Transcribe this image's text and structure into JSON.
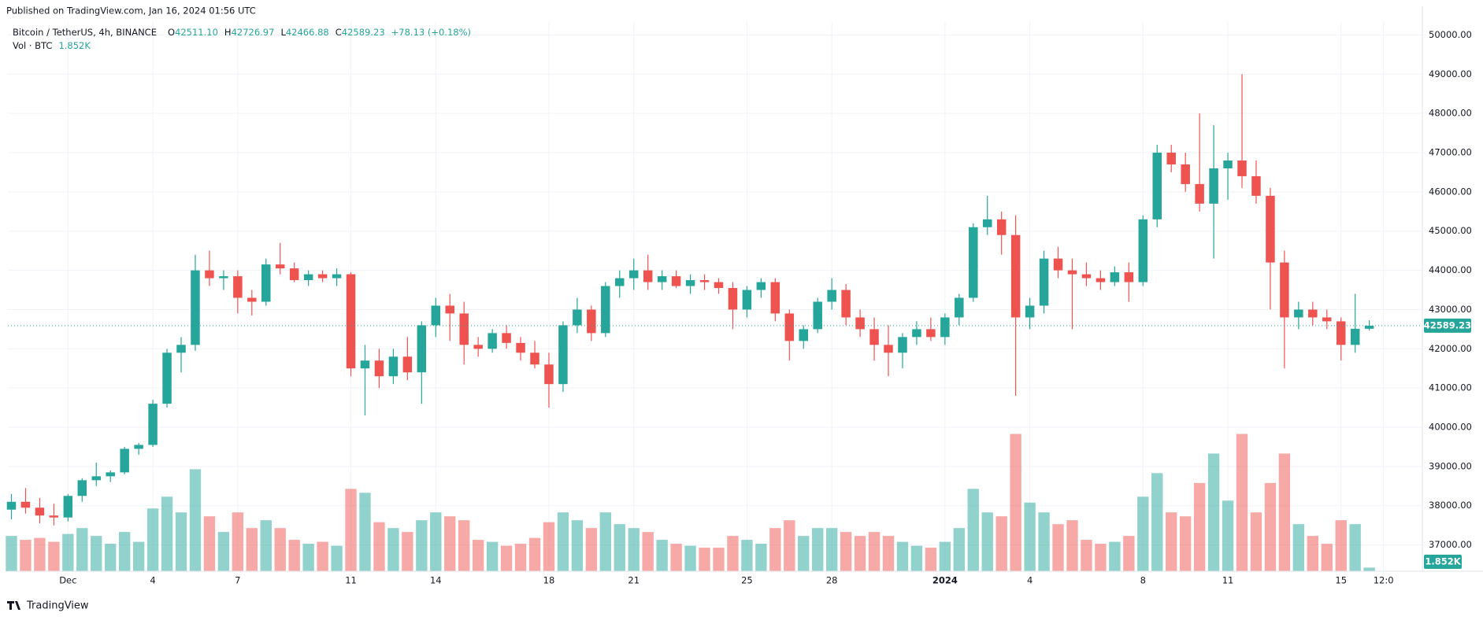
{
  "published": "Published on TradingView.com, Jan 16, 2024 01:56 UTC",
  "brand": "TradingView",
  "header": {
    "symbol": "Bitcoin / TetherUS, 4h, BINANCE",
    "ohlc_keys": [
      "O",
      "H",
      "L",
      "C"
    ],
    "ohlc_values": [
      "42511.10",
      "42726.97",
      "42466.88",
      "42589.23"
    ],
    "change": "+78.13 (+0.18%)",
    "vol_title": "Vol · BTC",
    "vol_value": "1.852K"
  },
  "chart_data": {
    "type": "candlestick",
    "up_color": "#26a69a",
    "down_color": "#ef5350",
    "grid": true,
    "xlim": [
      -0.25,
      99.75
    ],
    "ylim": [
      36330,
      50330
    ],
    "xticks": [
      {
        "value": 4,
        "label": "Dec"
      },
      {
        "value": 10,
        "label": "4"
      },
      {
        "value": 16,
        "label": "7"
      },
      {
        "value": 24,
        "label": "11"
      },
      {
        "value": 30,
        "label": "14"
      },
      {
        "value": 38,
        "label": "18"
      },
      {
        "value": 44,
        "label": "21"
      },
      {
        "value": 52,
        "label": "25"
      },
      {
        "value": 58,
        "label": "28"
      },
      {
        "value": 66,
        "label": "2024"
      },
      {
        "value": 72,
        "label": "4"
      },
      {
        "value": 80,
        "label": "8"
      },
      {
        "value": 86,
        "label": "11"
      },
      {
        "value": 94,
        "label": "15"
      },
      {
        "value": 97,
        "label": "12:0"
      }
    ],
    "yticks": [
      {
        "value": 37000,
        "label": "37000.00"
      },
      {
        "value": 38000,
        "label": "38000.00"
      },
      {
        "value": 39000,
        "label": "39000.00"
      },
      {
        "value": 40000,
        "label": "40000.00"
      },
      {
        "value": 41000,
        "label": "41000.00"
      },
      {
        "value": 42000,
        "label": "42000.00"
      },
      {
        "value": 43000,
        "label": "43000.00"
      },
      {
        "value": 44000,
        "label": "44000.00"
      },
      {
        "value": 45000,
        "label": "45000.00"
      },
      {
        "value": 46000,
        "label": "46000.00"
      },
      {
        "value": 47000,
        "label": "47000.00"
      },
      {
        "value": 48000,
        "label": "48000.00"
      },
      {
        "value": 49000,
        "label": "49000.00"
      },
      {
        "value": 50000,
        "label": "50000.00"
      }
    ],
    "open": [
      37900,
      38100,
      37950,
      37750,
      37700,
      38250,
      38650,
      38750,
      38850,
      39450,
      39550,
      40600,
      41900,
      42100,
      44000,
      43800,
      43850,
      43300,
      43200,
      44150,
      44050,
      43750,
      43900,
      43800,
      43900,
      41500,
      41700,
      41300,
      41800,
      41400,
      42600,
      43100,
      42900,
      42100,
      42000,
      42400,
      42150,
      41900,
      41600,
      41100,
      42600,
      43000,
      42400,
      43600,
      43800,
      44000,
      43700,
      43850,
      43600,
      43750,
      43700,
      43550,
      43000,
      43500,
      43700,
      42900,
      42200,
      42500,
      43200,
      43500,
      42800,
      42500,
      42100,
      41900,
      42300,
      42500,
      42300,
      42800,
      43300,
      45100,
      45300,
      44900,
      42800,
      43100,
      44300,
      44000,
      43900,
      43800,
      43700,
      43950,
      43700,
      45300,
      47000,
      46700,
      46200,
      45700,
      46600,
      46800,
      46400,
      45900,
      44200,
      42800,
      43000,
      42800,
      42700,
      42100,
      42511.1
    ],
    "high": [
      38300,
      38450,
      38200,
      38050,
      38300,
      38700,
      39100,
      38900,
      39500,
      39600,
      40700,
      42000,
      42300,
      44400,
      44500,
      44000,
      44000,
      43500,
      44300,
      44700,
      44200,
      44000,
      44000,
      44050,
      43950,
      42100,
      42000,
      42000,
      42300,
      42700,
      43300,
      43400,
      43200,
      42300,
      42500,
      42600,
      42300,
      42200,
      41900,
      42700,
      43300,
      43100,
      43700,
      44000,
      44300,
      44400,
      44000,
      44000,
      43900,
      43900,
      43800,
      43700,
      43600,
      43800,
      43800,
      43000,
      42600,
      43300,
      43800,
      43650,
      43000,
      42800,
      42600,
      42400,
      42700,
      42800,
      42900,
      43400,
      45200,
      45900,
      45500,
      45400,
      43300,
      44500,
      44600,
      44300,
      44200,
      44000,
      44100,
      44200,
      45400,
      47200,
      47200,
      47000,
      48000,
      47700,
      47000,
      49000,
      46800,
      46100,
      44500,
      43200,
      43200,
      43000,
      42800,
      43400,
      42726.97
    ],
    "low": [
      37650,
      37800,
      37550,
      37500,
      37600,
      38100,
      38500,
      38600,
      38800,
      39300,
      39500,
      40500,
      41400,
      41950,
      43600,
      43500,
      42900,
      42850,
      43100,
      43900,
      43700,
      43600,
      43700,
      43600,
      41300,
      40300,
      41000,
      41100,
      41200,
      40600,
      42300,
      42200,
      41600,
      41800,
      41900,
      42000,
      41700,
      41500,
      40500,
      40900,
      42400,
      42200,
      42300,
      43300,
      43500,
      43500,
      43500,
      43550,
      43400,
      43500,
      43400,
      42500,
      42800,
      43300,
      42700,
      41700,
      42000,
      42400,
      43000,
      42600,
      42300,
      41700,
      41300,
      41500,
      42100,
      42200,
      42100,
      42600,
      43200,
      44900,
      44400,
      40800,
      42500,
      42900,
      43800,
      42500,
      43600,
      43500,
      43600,
      43200,
      43600,
      45100,
      46500,
      46000,
      45500,
      44300,
      45800,
      46100,
      45700,
      43000,
      41500,
      42500,
      42600,
      42500,
      41700,
      41900,
      42466.88
    ],
    "close": [
      38100,
      37950,
      37750,
      37700,
      38250,
      38650,
      38750,
      38850,
      39450,
      39550,
      40600,
      41900,
      42100,
      44000,
      43800,
      43850,
      43300,
      43200,
      44150,
      44050,
      43750,
      43900,
      43800,
      43900,
      41500,
      41700,
      41300,
      41800,
      41400,
      42600,
      43100,
      42900,
      42100,
      42000,
      42400,
      42150,
      41900,
      41600,
      41100,
      42600,
      43000,
      42400,
      43600,
      43800,
      44000,
      43700,
      43850,
      43600,
      43750,
      43700,
      43550,
      43000,
      43500,
      43700,
      42900,
      42200,
      42500,
      43200,
      43500,
      42800,
      42500,
      42100,
      41900,
      42300,
      42500,
      42300,
      42800,
      43300,
      45100,
      45300,
      44900,
      42800,
      43100,
      44300,
      44000,
      43900,
      43800,
      43700,
      43950,
      43700,
      45300,
      47000,
      46700,
      46200,
      45700,
      46600,
      46800,
      46400,
      45900,
      44200,
      42800,
      43000,
      42800,
      42700,
      42100,
      42511.1,
      42589.23
    ],
    "volume": [
      18000,
      16000,
      17000,
      15000,
      19000,
      22000,
      18000,
      14000,
      20000,
      15000,
      32000,
      38000,
      30000,
      52000,
      28000,
      20000,
      30000,
      22000,
      26000,
      22000,
      16000,
      14000,
      15000,
      13000,
      42000,
      40000,
      25000,
      22000,
      20000,
      26000,
      30000,
      28000,
      26000,
      16000,
      15000,
      13000,
      14000,
      17000,
      25000,
      30000,
      26000,
      22000,
      30000,
      24000,
      22000,
      20000,
      16000,
      14000,
      13000,
      12000,
      12000,
      18000,
      16000,
      14000,
      22000,
      26000,
      18000,
      22000,
      22000,
      20000,
      18000,
      20000,
      18000,
      15000,
      13000,
      12000,
      15000,
      22000,
      42000,
      30000,
      28000,
      70000,
      35000,
      30000,
      24000,
      26000,
      16000,
      14000,
      15000,
      18000,
      38000,
      50000,
      30000,
      28000,
      45000,
      60000,
      36000,
      70000,
      30000,
      45000,
      60000,
      24000,
      18000,
      14000,
      26000,
      24000,
      1852
    ],
    "last_labels": {
      "price": "42589.23",
      "volume": "1.852K"
    }
  }
}
